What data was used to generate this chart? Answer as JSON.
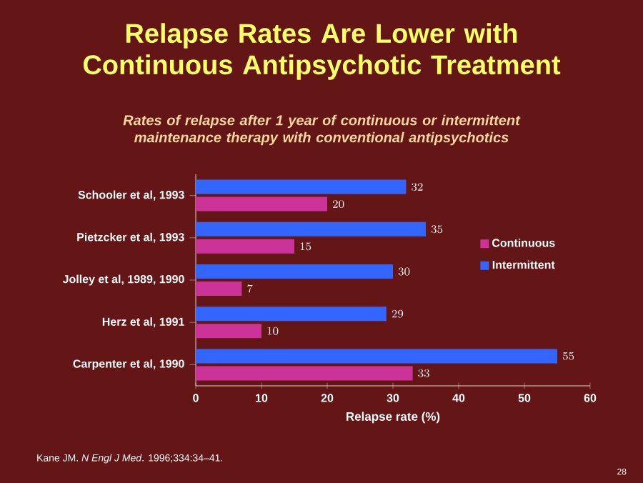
{
  "chart_data": {
    "type": "bar",
    "orientation": "horizontal",
    "title": "Relapse Rates Are Lower with Continuous Antipsychotic Treatment",
    "subtitle": "Rates of relapse after 1 year of continuous or intermittent maintenance therapy with conventional antipsychotics",
    "xlabel": "Relapse rate (%)",
    "categories": [
      "Schooler et al, 1993",
      "Pietzcker et al, 1993",
      "Jolley et al, 1989, 1990",
      "Herz et al, 1991",
      "Carpenter et al, 1990"
    ],
    "series": [
      {
        "name": "Continuous",
        "color": "#cc3399",
        "values": [
          20,
          15,
          7,
          10,
          33
        ]
      },
      {
        "name": "Intermittent",
        "color": "#3366ff",
        "values": [
          32,
          35,
          30,
          29,
          55
        ]
      }
    ],
    "xlim": [
      0,
      60
    ],
    "xticks": [
      0,
      10,
      20,
      30,
      40,
      50,
      60
    ],
    "data_labels": true,
    "legend": "right",
    "grid": false,
    "annotations": [
      "Kane JM. *N Engl J Med*. 1996;334:34–41.",
      "28"
    ]
  }
}
